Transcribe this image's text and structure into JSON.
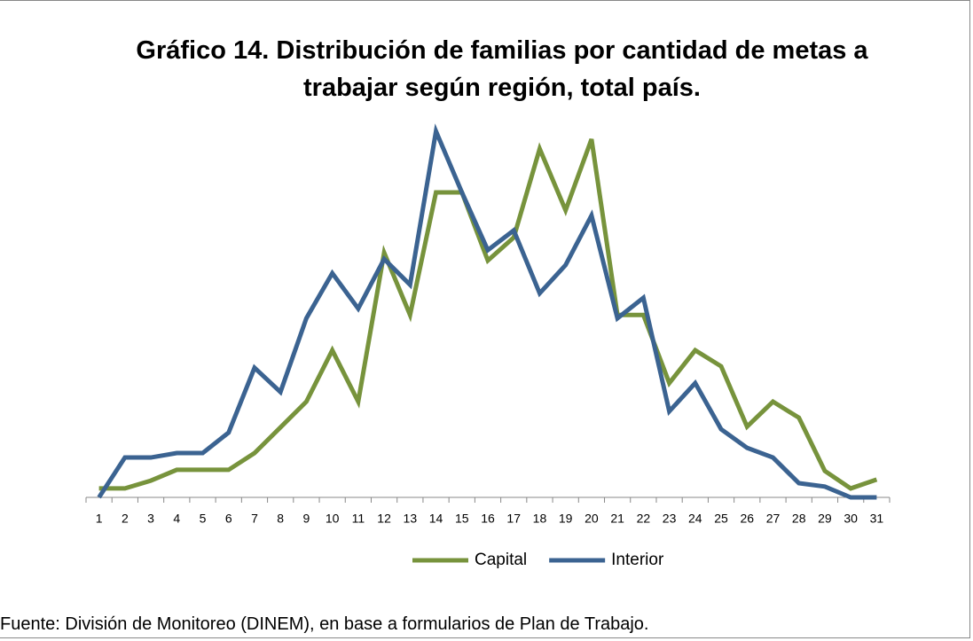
{
  "chart_data": {
    "type": "line",
    "title": "Gráfico 14. Distribución de familias por cantidad de metas a trabajar según región, total país.",
    "categories": [
      "1",
      "2",
      "3",
      "4",
      "5",
      "6",
      "7",
      "8",
      "9",
      "10",
      "11",
      "12",
      "13",
      "14",
      "15",
      "16",
      "17",
      "18",
      "19",
      "20",
      "21",
      "22",
      "23",
      "24",
      "25",
      "26",
      "27",
      "28",
      "29",
      "30",
      "31"
    ],
    "series": [
      {
        "name": "Capital",
        "color": "#77933c",
        "values": [
          2.4,
          2.4,
          4.5,
          7.4,
          7.4,
          7.4,
          11.9,
          18.8,
          25.7,
          39.5,
          25.7,
          65.7,
          49,
          81.9,
          81.9,
          63.6,
          69.8,
          93.6,
          77.1,
          96.2,
          49,
          49,
          30.7,
          39.5,
          35.2,
          19,
          25.7,
          21.4,
          7.1,
          2.4,
          4.8
        ]
      },
      {
        "name": "Interior",
        "color": "#3b6391",
        "values": [
          0,
          10.7,
          10.7,
          11.9,
          11.9,
          17.4,
          34.8,
          28.3,
          48.1,
          60.2,
          50.7,
          64,
          57.1,
          98.3,
          81.9,
          66.4,
          71.7,
          54.8,
          62.4,
          75.7,
          48.1,
          53.6,
          23.1,
          30.7,
          18.3,
          13.3,
          10.7,
          3.8,
          2.9,
          0,
          0
        ]
      }
    ],
    "ylim": [
      0,
      100
    ],
    "legend": "bottom",
    "source": "Fuente: División de Monitoreo (DINEM), en base a formularios  de Plan de Trabajo."
  }
}
